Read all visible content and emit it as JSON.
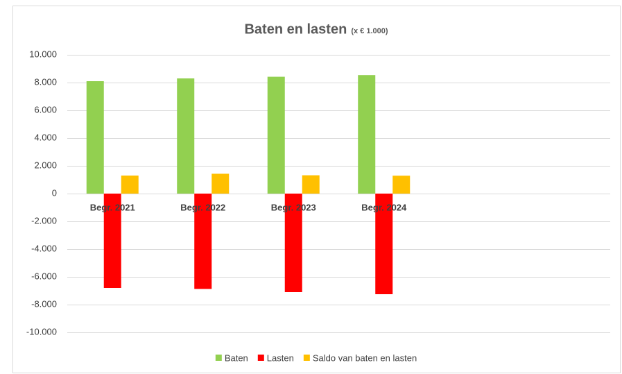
{
  "chart_data": {
    "type": "bar",
    "title": "Baten en lasten",
    "subtitle": "(x € 1.000)",
    "categories": [
      "Begr. 2021",
      "Begr. 2022",
      "Begr. 2023",
      "Begr. 2024",
      null,
      null
    ],
    "series": [
      {
        "name": "Baten",
        "color": "#92d050",
        "values": [
          8100,
          8300,
          8420,
          8540,
          null,
          null
        ]
      },
      {
        "name": "Lasten",
        "color": "#ff0000",
        "values": [
          -6800,
          -6870,
          -7100,
          -7250,
          null,
          null
        ]
      },
      {
        "name": "Saldo van baten en lasten",
        "color": "#ffc000",
        "values": [
          1300,
          1430,
          1320,
          1290,
          null,
          null
        ]
      }
    ],
    "ylim": [
      -10000,
      10000
    ],
    "yticks": [
      {
        "value": -10000,
        "label": "-10.000"
      },
      {
        "value": -8000,
        "label": "-8.000"
      },
      {
        "value": -6000,
        "label": "-6.000"
      },
      {
        "value": -4000,
        "label": "-4.000"
      },
      {
        "value": -2000,
        "label": "-2.000"
      },
      0,
      {
        "value": 2000,
        "label": "2.000"
      },
      {
        "value": 4000,
        "label": "4.000"
      },
      {
        "value": 6000,
        "label": "6.000"
      },
      {
        "value": 8000,
        "label": "8.000"
      },
      {
        "value": 10000,
        "label": "10.000"
      }
    ],
    "grid": true,
    "legend": "bottom"
  }
}
